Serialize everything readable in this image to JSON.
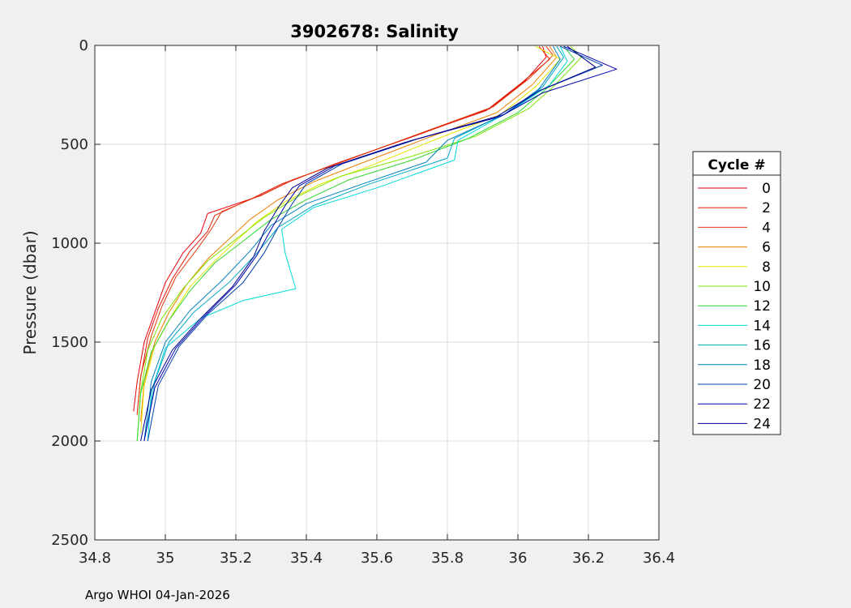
{
  "footer": "Argo WHOI 04-Jan-2026",
  "chart_data": {
    "type": "line",
    "title": "3902678:  Salinity",
    "xlabel": "",
    "ylabel": "Pressure (dbar)",
    "xlim": [
      34.8,
      36.4
    ],
    "ylim": [
      0,
      2500
    ],
    "y_reversed": true,
    "grid": true,
    "xticks": [
      "34.8",
      "35",
      "35.2",
      "35.4",
      "35.6",
      "35.8",
      "36",
      "36.2",
      "36.4"
    ],
    "yticks": [
      "0",
      "500",
      "1000",
      "1500",
      "2000",
      "2500"
    ],
    "legend": {
      "title": "Cycle #",
      "placement": "outside-right",
      "entries": [
        "0",
        "2",
        "4",
        "6",
        "8",
        "10",
        "12",
        "14",
        "16",
        "18",
        "20",
        "22",
        "24"
      ]
    },
    "series": [
      {
        "name": "0",
        "color": "#e8000b",
        "points": [
          [
            36.07,
            5
          ],
          [
            36.08,
            60
          ],
          [
            36.02,
            180
          ],
          [
            35.92,
            320
          ],
          [
            35.72,
            450
          ],
          [
            35.48,
            600
          ],
          [
            35.35,
            690
          ],
          [
            35.27,
            760
          ],
          [
            35.12,
            850
          ],
          [
            35.1,
            950
          ],
          [
            35.05,
            1050
          ],
          [
            35.0,
            1200
          ],
          [
            34.97,
            1350
          ],
          [
            34.94,
            1500
          ],
          [
            34.92,
            1700
          ],
          [
            34.91,
            1850
          ]
        ]
      },
      {
        "name": "2",
        "color": "#e31a0a",
        "points": [
          [
            36.06,
            5
          ],
          [
            36.09,
            70
          ],
          [
            36.01,
            190
          ],
          [
            35.91,
            330
          ],
          [
            35.7,
            460
          ],
          [
            35.47,
            610
          ],
          [
            35.33,
            700
          ],
          [
            35.25,
            770
          ],
          [
            35.14,
            860
          ],
          [
            35.12,
            940
          ],
          [
            35.07,
            1040
          ],
          [
            35.02,
            1180
          ],
          [
            34.98,
            1330
          ],
          [
            34.95,
            1480
          ],
          [
            34.93,
            1680
          ],
          [
            34.92,
            1860
          ]
        ]
      },
      {
        "name": "4",
        "color": "#e03b0c",
        "points": [
          [
            36.08,
            5
          ],
          [
            36.1,
            50
          ],
          [
            36.03,
            170
          ],
          [
            35.93,
            310
          ],
          [
            35.73,
            440
          ],
          [
            35.5,
            590
          ],
          [
            35.36,
            680
          ],
          [
            35.28,
            750
          ],
          [
            35.16,
            840
          ],
          [
            35.13,
            930
          ],
          [
            35.09,
            1030
          ],
          [
            35.03,
            1170
          ],
          [
            34.99,
            1320
          ],
          [
            34.96,
            1470
          ],
          [
            34.93,
            1670
          ],
          [
            34.92,
            1870
          ]
        ]
      },
      {
        "name": "6",
        "color": "#f07f00",
        "points": [
          [
            36.09,
            5
          ],
          [
            36.11,
            60
          ],
          [
            36.04,
            200
          ],
          [
            35.94,
            340
          ],
          [
            35.74,
            470
          ],
          [
            35.55,
            600
          ],
          [
            35.42,
            690
          ],
          [
            35.32,
            780
          ],
          [
            35.24,
            880
          ],
          [
            35.18,
            980
          ],
          [
            35.12,
            1080
          ],
          [
            35.06,
            1210
          ],
          [
            35.01,
            1350
          ],
          [
            34.97,
            1500
          ],
          [
            34.94,
            1700
          ],
          [
            34.93,
            1900
          ]
        ]
      },
      {
        "name": "8",
        "color": "#e6e600",
        "points": [
          [
            36.05,
            5
          ],
          [
            36.12,
            70
          ],
          [
            36.05,
            210
          ],
          [
            35.95,
            350
          ],
          [
            35.76,
            480
          ],
          [
            35.58,
            610
          ],
          [
            35.44,
            700
          ],
          [
            35.34,
            790
          ],
          [
            35.26,
            890
          ],
          [
            35.2,
            990
          ],
          [
            35.14,
            1090
          ],
          [
            35.07,
            1220
          ],
          [
            35.02,
            1360
          ],
          [
            34.97,
            1520
          ],
          [
            34.94,
            1720
          ],
          [
            34.93,
            1960
          ]
        ]
      },
      {
        "name": "10",
        "color": "#80e600",
        "points": [
          [
            36.15,
            5
          ],
          [
            36.18,
            60
          ],
          [
            36.1,
            210
          ],
          [
            36.03,
            320
          ],
          [
            35.88,
            460
          ],
          [
            35.7,
            560
          ],
          [
            35.5,
            660
          ],
          [
            35.38,
            760
          ],
          [
            35.28,
            870
          ],
          [
            35.2,
            980
          ],
          [
            35.12,
            1090
          ],
          [
            35.05,
            1230
          ],
          [
            34.99,
            1380
          ],
          [
            34.95,
            1540
          ],
          [
            34.93,
            1750
          ],
          [
            34.92,
            2000
          ]
        ]
      },
      {
        "name": "12",
        "color": "#2fd62f",
        "points": [
          [
            36.13,
            5
          ],
          [
            36.16,
            70
          ],
          [
            36.08,
            220
          ],
          [
            36.0,
            340
          ],
          [
            35.86,
            470
          ],
          [
            35.7,
            580
          ],
          [
            35.52,
            680
          ],
          [
            35.4,
            780
          ],
          [
            35.3,
            880
          ],
          [
            35.22,
            990
          ],
          [
            35.14,
            1100
          ],
          [
            35.07,
            1240
          ],
          [
            35.01,
            1390
          ],
          [
            34.96,
            1550
          ],
          [
            34.93,
            1760
          ],
          [
            34.92,
            2000
          ]
        ]
      },
      {
        "name": "14",
        "color": "#00d9d9",
        "points": [
          [
            36.12,
            5
          ],
          [
            36.14,
            80
          ],
          [
            36.09,
            200
          ],
          [
            35.98,
            330
          ],
          [
            35.83,
            480
          ],
          [
            35.82,
            580
          ],
          [
            35.6,
            720
          ],
          [
            35.42,
            820
          ],
          [
            35.33,
            930
          ],
          [
            35.34,
            1050
          ],
          [
            35.37,
            1230
          ],
          [
            35.22,
            1290
          ],
          [
            35.1,
            1380
          ],
          [
            35.0,
            1530
          ],
          [
            34.96,
            1750
          ],
          [
            34.95,
            2000
          ]
        ]
      },
      {
        "name": "16",
        "color": "#00a8c8",
        "points": [
          [
            36.11,
            5
          ],
          [
            36.13,
            60
          ],
          [
            36.07,
            210
          ],
          [
            35.97,
            340
          ],
          [
            35.82,
            470
          ],
          [
            35.8,
            570
          ],
          [
            35.58,
            700
          ],
          [
            35.42,
            810
          ],
          [
            35.32,
            920
          ],
          [
            35.26,
            1050
          ],
          [
            35.18,
            1200
          ],
          [
            35.08,
            1350
          ],
          [
            35.01,
            1500
          ],
          [
            34.97,
            1700
          ],
          [
            34.94,
            2000
          ]
        ]
      },
      {
        "name": "18",
        "color": "#0080c0",
        "points": [
          [
            36.1,
            5
          ],
          [
            36.12,
            70
          ],
          [
            36.06,
            220
          ],
          [
            35.96,
            350
          ],
          [
            35.8,
            480
          ],
          [
            35.74,
            590
          ],
          [
            35.56,
            700
          ],
          [
            35.4,
            800
          ],
          [
            35.3,
            910
          ],
          [
            35.24,
            1040
          ],
          [
            35.16,
            1190
          ],
          [
            35.07,
            1340
          ],
          [
            35.0,
            1500
          ],
          [
            34.96,
            1700
          ],
          [
            34.94,
            2000
          ]
        ]
      },
      {
        "name": "20",
        "color": "#0040b0",
        "points": [
          [
            36.12,
            5
          ],
          [
            36.24,
            100
          ],
          [
            36.06,
            230
          ],
          [
            35.96,
            350
          ],
          [
            35.72,
            470
          ],
          [
            35.5,
            600
          ],
          [
            35.4,
            700
          ],
          [
            35.36,
            800
          ],
          [
            35.32,
            920
          ],
          [
            35.28,
            1050
          ],
          [
            35.22,
            1200
          ],
          [
            35.12,
            1360
          ],
          [
            35.04,
            1520
          ],
          [
            34.98,
            1720
          ],
          [
            34.95,
            2000
          ]
        ]
      },
      {
        "name": "22",
        "color": "#0000aa",
        "points": [
          [
            36.13,
            5
          ],
          [
            36.28,
            120
          ],
          [
            36.07,
            240
          ],
          [
            35.95,
            360
          ],
          [
            35.7,
            480
          ],
          [
            35.48,
            610
          ],
          [
            35.38,
            710
          ],
          [
            35.34,
            810
          ],
          [
            35.3,
            930
          ],
          [
            35.26,
            1060
          ],
          [
            35.2,
            1210
          ],
          [
            35.11,
            1370
          ],
          [
            35.03,
            1530
          ],
          [
            34.97,
            1730
          ],
          [
            34.94,
            2000
          ]
        ]
      },
      {
        "name": "24",
        "color": "#00008b",
        "points": [
          [
            36.14,
            5
          ],
          [
            36.22,
            110
          ],
          [
            36.06,
            230
          ],
          [
            35.94,
            360
          ],
          [
            35.68,
            490
          ],
          [
            35.46,
            620
          ],
          [
            35.36,
            720
          ],
          [
            35.32,
            820
          ],
          [
            35.28,
            940
          ],
          [
            35.25,
            1070
          ],
          [
            35.19,
            1220
          ],
          [
            35.1,
            1380
          ],
          [
            35.02,
            1540
          ],
          [
            34.96,
            1740
          ],
          [
            34.93,
            2000
          ]
        ]
      }
    ]
  }
}
